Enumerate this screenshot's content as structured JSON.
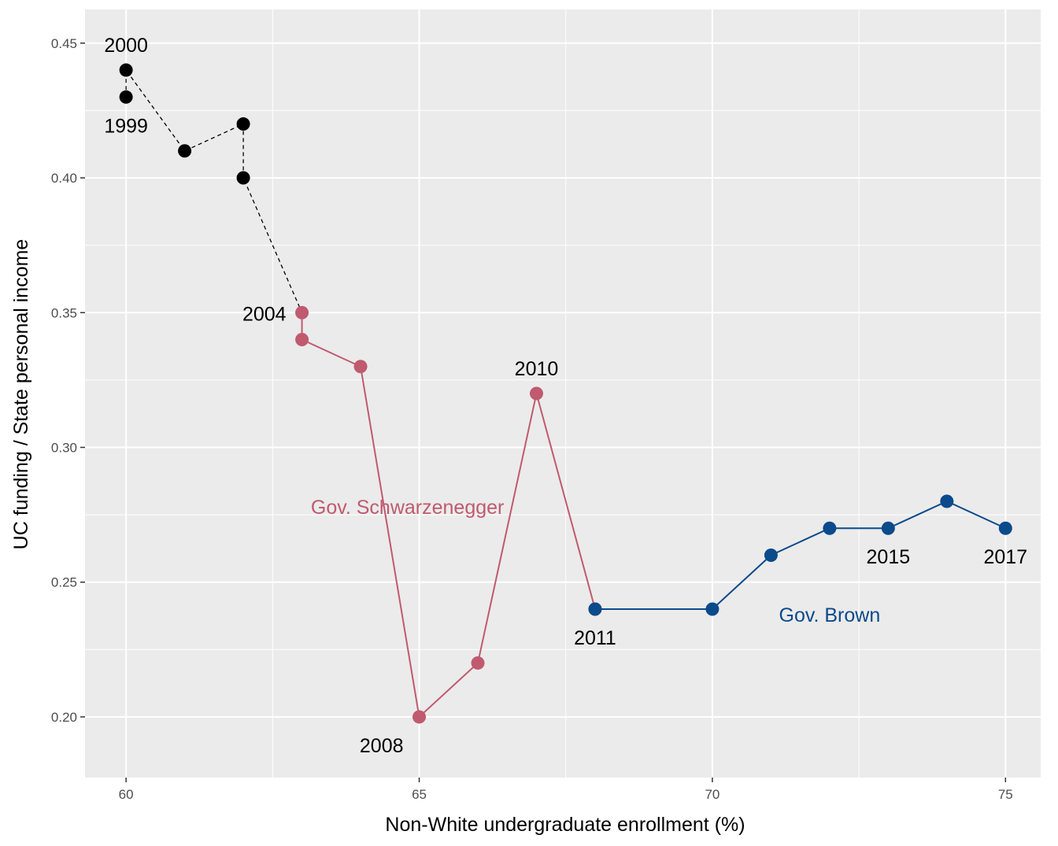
{
  "chart_data": {
    "type": "line",
    "xlabel": "Non-White undergraduate enrollment (%)",
    "ylabel": "UC funding / State  personal income",
    "xlim": [
      59.3,
      75.6
    ],
    "ylim": [
      0.1775,
      0.4625
    ],
    "x_ticks": [
      60,
      65,
      70,
      75
    ],
    "x_tick_labels": [
      "60",
      "65",
      "70",
      "75"
    ],
    "y_ticks": [
      0.2,
      0.25,
      0.3,
      0.35,
      0.4,
      0.45
    ],
    "y_tick_labels": [
      "0.20",
      "0.25",
      "0.30",
      "0.35",
      "0.40",
      "0.45"
    ],
    "grid": true,
    "colors": {
      "panel": "#EBEBEB",
      "grid": "#FFFFFF",
      "pre": "#000000",
      "schwarzenegger": "#C05A6E",
      "brown": "#0B4A8B"
    },
    "series": [
      {
        "group": "pre",
        "line_style": "dashed",
        "points": [
          {
            "x": 60,
            "y": 0.43
          },
          {
            "x": 60,
            "y": 0.44
          },
          {
            "x": 61,
            "y": 0.41
          },
          {
            "x": 62,
            "y": 0.42
          },
          {
            "x": 62,
            "y": 0.4
          },
          {
            "x": 63,
            "y": 0.35
          }
        ]
      },
      {
        "group": "schwarzenegger",
        "line_style": "solid",
        "points": [
          {
            "x": 63,
            "y": 0.35
          },
          {
            "x": 63,
            "y": 0.34
          },
          {
            "x": 64,
            "y": 0.33
          },
          {
            "x": 65,
            "y": 0.2
          },
          {
            "x": 66,
            "y": 0.22
          },
          {
            "x": 67,
            "y": 0.32
          },
          {
            "x": 68,
            "y": 0.24
          }
        ]
      },
      {
        "group": "brown",
        "line_style": "solid",
        "points": [
          {
            "x": 68,
            "y": 0.24
          },
          {
            "x": 70,
            "y": 0.24
          },
          {
            "x": 71,
            "y": 0.26
          },
          {
            "x": 72,
            "y": 0.27
          },
          {
            "x": 73,
            "y": 0.27
          },
          {
            "x": 74,
            "y": 0.28
          },
          {
            "x": 75,
            "y": 0.27
          }
        ]
      }
    ],
    "point_labels": [
      {
        "text": "2000",
        "x": 60,
        "y": 0.44,
        "pos": "above"
      },
      {
        "text": "1999",
        "x": 60,
        "y": 0.43,
        "pos": "below"
      },
      {
        "text": "2004",
        "x": 63,
        "y": 0.35,
        "pos": "left"
      },
      {
        "text": "2008",
        "x": 65,
        "y": 0.2,
        "pos": "below-left"
      },
      {
        "text": "2010",
        "x": 67,
        "y": 0.32,
        "pos": "above"
      },
      {
        "text": "2011",
        "x": 68,
        "y": 0.24,
        "pos": "below"
      },
      {
        "text": "2015",
        "x": 73,
        "y": 0.27,
        "pos": "below"
      },
      {
        "text": "2017",
        "x": 75,
        "y": 0.27,
        "pos": "below"
      }
    ],
    "annotations": [
      {
        "text": "Gov. Schwarzenegger",
        "x": 64.8,
        "y": 0.278,
        "group": "schwarzenegger"
      },
      {
        "text": "Gov. Brown",
        "x": 72.0,
        "y": 0.238,
        "group": "brown"
      }
    ]
  }
}
